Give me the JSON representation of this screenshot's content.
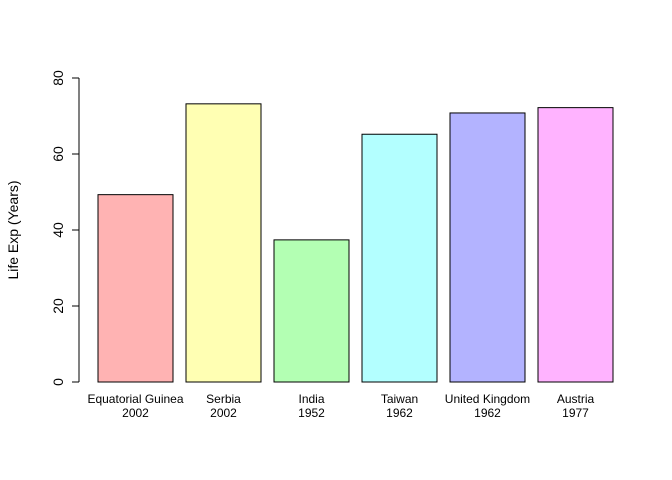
{
  "chart_data": {
    "type": "bar",
    "title": "",
    "xlabel": "",
    "ylabel": "Life Exp (Years)",
    "ylim": [
      0,
      80
    ],
    "yticks": [
      0,
      20,
      40,
      60,
      80
    ],
    "grid": false,
    "legend": "none",
    "categories": [
      {
        "name": "Equatorial Guinea",
        "year": "2002"
      },
      {
        "name": "Serbia",
        "year": "2002"
      },
      {
        "name": "India",
        "year": "1952"
      },
      {
        "name": "Taiwan",
        "year": "1962"
      },
      {
        "name": "United Kingdom",
        "year": "1962"
      },
      {
        "name": "Austria",
        "year": "1977"
      }
    ],
    "values": [
      49.3,
      73.2,
      37.4,
      65.2,
      70.8,
      72.2
    ],
    "colors": [
      "#FFB3B3",
      "#FFFFB3",
      "#B3FFB3",
      "#B3FFFF",
      "#B3B3FF",
      "#FFB3FF"
    ]
  }
}
